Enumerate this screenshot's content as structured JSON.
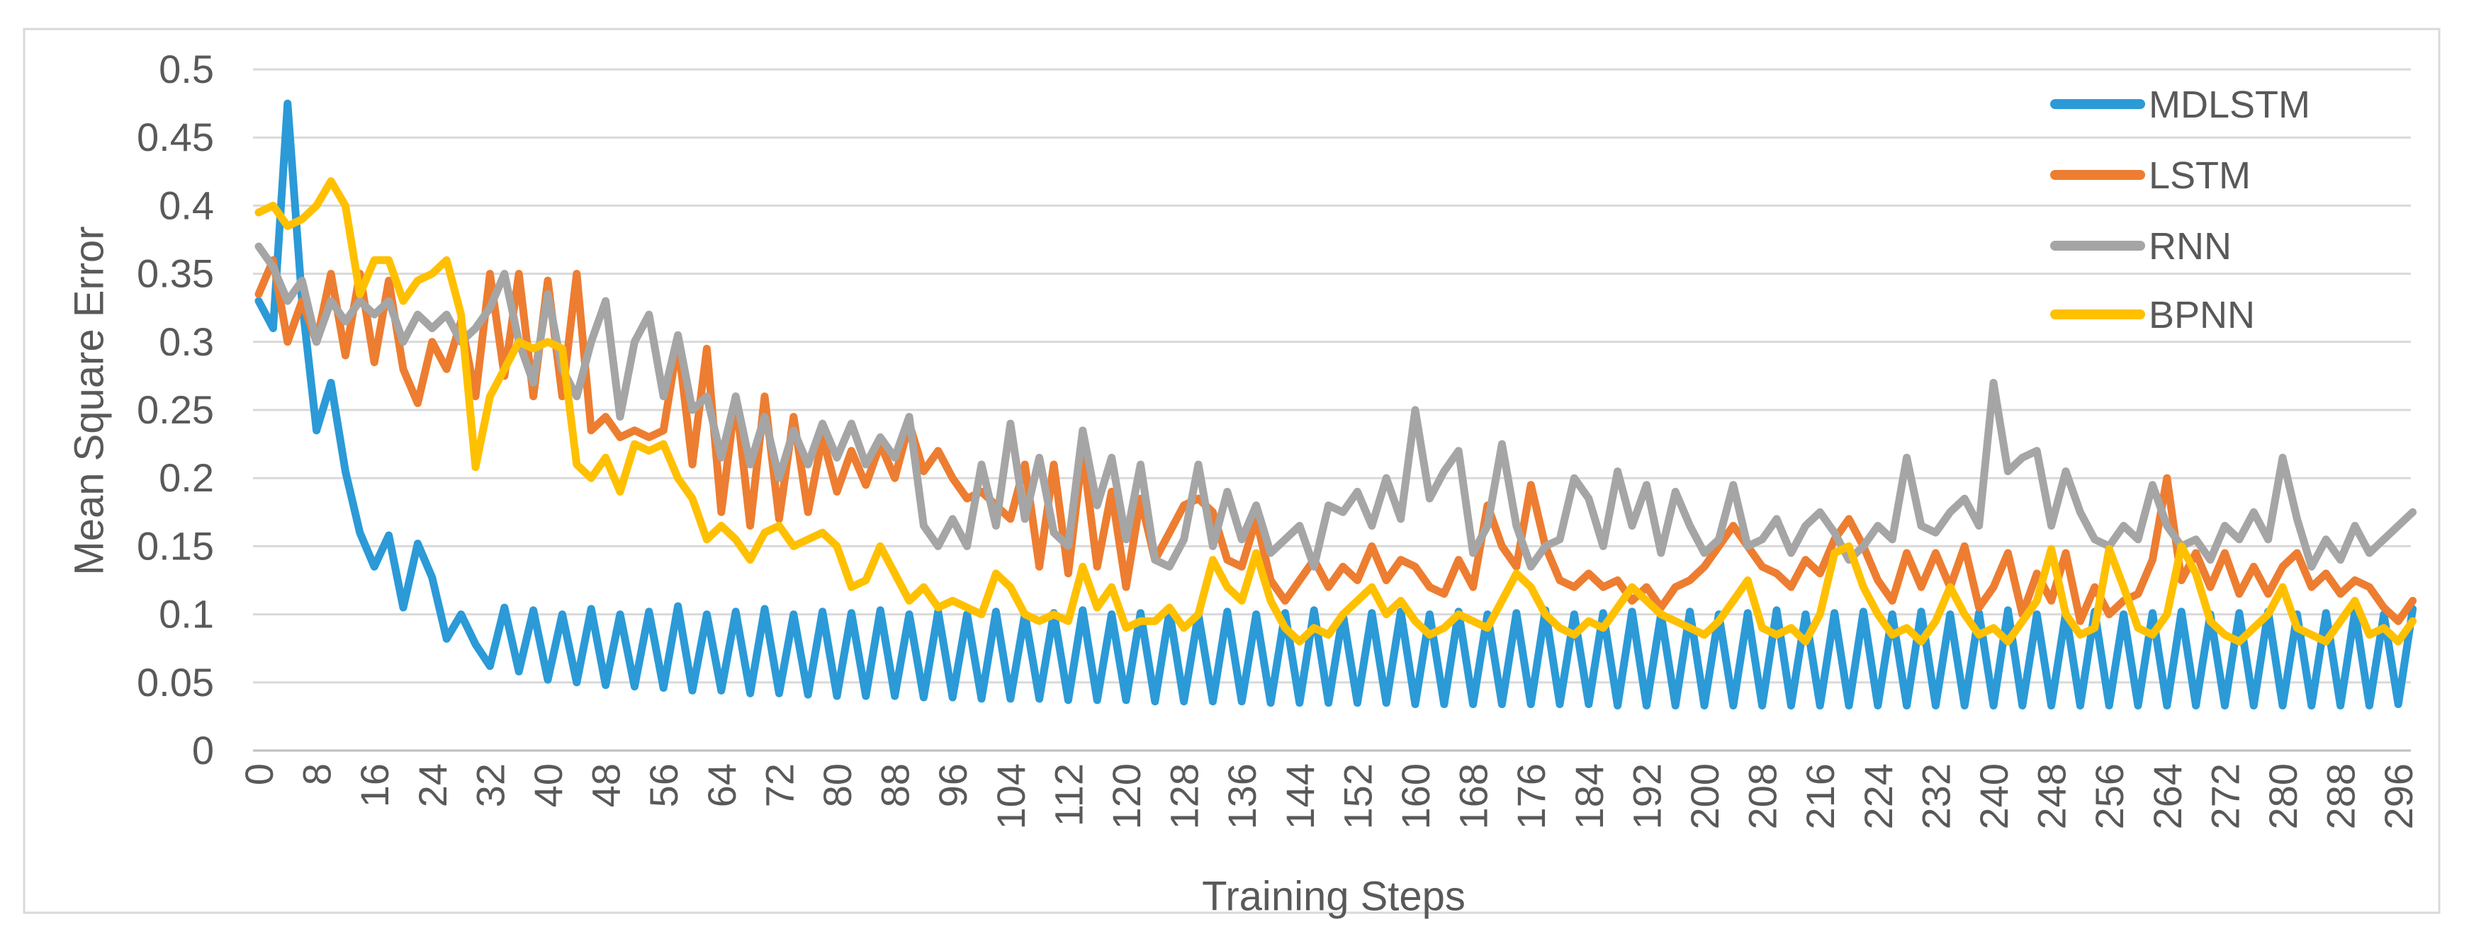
{
  "figure": {
    "background": "#FFFFFF"
  },
  "chart_data": {
    "type": "line",
    "title": "",
    "xlabel": "Training Steps",
    "ylabel": "Mean Square Error",
    "grid": true,
    "legend_position": "top-right",
    "ylim": [
      0,
      0.5
    ],
    "xlim": [
      0,
      298
    ],
    "x_start": 0,
    "x_step": 2,
    "x_tick_interval": 8,
    "x_tick_labels": [
      "0",
      "8",
      "16",
      "24",
      "32",
      "40",
      "48",
      "56",
      "64",
      "72",
      "80",
      "88",
      "96",
      "104",
      "112",
      "120",
      "128",
      "136",
      "144",
      "152",
      "160",
      "168",
      "176",
      "184",
      "192",
      "200",
      "208",
      "216",
      "224",
      "232",
      "240",
      "248",
      "256",
      "264",
      "272",
      "280",
      "288",
      "296"
    ],
    "y_ticks": [
      0,
      0.05,
      0.1,
      0.15,
      0.2,
      0.25,
      0.3,
      0.35,
      0.4,
      0.45,
      0.5
    ],
    "y_tick_labels": [
      "0",
      "0.05",
      "0.1",
      "0.15",
      "0.2",
      "0.25",
      "0.3",
      "0.35",
      "0.4",
      "0.45",
      "0.5"
    ],
    "colors": {
      "gridline": "#D9D9D9",
      "axis": "#BFBFBF",
      "border": "#D9D9D9",
      "text": "#595959"
    },
    "series": [
      {
        "name": "MDLSTM",
        "color": "#2B9AD7",
        "values": [
          0.33,
          0.31,
          0.475,
          0.33,
          0.235,
          0.27,
          0.205,
          0.16,
          0.135,
          0.158,
          0.105,
          0.152,
          0.127,
          0.082,
          0.1,
          0.078,
          0.062,
          0.105,
          0.058,
          0.103,
          0.052,
          0.1,
          0.05,
          0.104,
          0.048,
          0.1,
          0.047,
          0.102,
          0.046,
          0.106,
          0.044,
          0.1,
          0.044,
          0.102,
          0.042,
          0.104,
          0.042,
          0.1,
          0.041,
          0.102,
          0.04,
          0.101,
          0.04,
          0.103,
          0.04,
          0.1,
          0.039,
          0.102,
          0.039,
          0.1,
          0.038,
          0.102,
          0.038,
          0.1,
          0.038,
          0.101,
          0.037,
          0.103,
          0.037,
          0.1,
          0.037,
          0.101,
          0.036,
          0.102,
          0.036,
          0.1,
          0.036,
          0.102,
          0.036,
          0.1,
          0.035,
          0.101,
          0.035,
          0.103,
          0.035,
          0.1,
          0.035,
          0.101,
          0.035,
          0.102,
          0.034,
          0.1,
          0.034,
          0.102,
          0.034,
          0.1,
          0.034,
          0.101,
          0.034,
          0.103,
          0.034,
          0.1,
          0.034,
          0.101,
          0.033,
          0.102,
          0.033,
          0.1,
          0.033,
          0.102,
          0.033,
          0.1,
          0.033,
          0.101,
          0.033,
          0.103,
          0.033,
          0.1,
          0.033,
          0.101,
          0.033,
          0.102,
          0.033,
          0.1,
          0.033,
          0.102,
          0.033,
          0.1,
          0.033,
          0.101,
          0.033,
          0.103,
          0.033,
          0.1,
          0.033,
          0.101,
          0.033,
          0.102,
          0.033,
          0.1,
          0.033,
          0.101,
          0.033,
          0.102,
          0.033,
          0.1,
          0.033,
          0.101,
          0.033,
          0.102,
          0.033,
          0.1,
          0.033,
          0.101,
          0.033,
          0.102,
          0.033,
          0.1,
          0.034,
          0.104
        ]
      },
      {
        "name": "LSTM",
        "color": "#ED7D31",
        "values": [
          0.335,
          0.36,
          0.3,
          0.33,
          0.3,
          0.35,
          0.29,
          0.35,
          0.285,
          0.345,
          0.28,
          0.255,
          0.3,
          0.28,
          0.315,
          0.26,
          0.35,
          0.275,
          0.35,
          0.26,
          0.345,
          0.26,
          0.35,
          0.235,
          0.245,
          0.23,
          0.235,
          0.23,
          0.235,
          0.3,
          0.21,
          0.295,
          0.175,
          0.26,
          0.165,
          0.26,
          0.17,
          0.245,
          0.175,
          0.23,
          0.19,
          0.22,
          0.195,
          0.225,
          0.2,
          0.24,
          0.205,
          0.22,
          0.2,
          0.185,
          0.19,
          0.18,
          0.17,
          0.21,
          0.135,
          0.21,
          0.13,
          0.22,
          0.135,
          0.19,
          0.12,
          0.185,
          0.14,
          0.16,
          0.18,
          0.185,
          0.175,
          0.14,
          0.135,
          0.17,
          0.125,
          0.11,
          0.125,
          0.14,
          0.12,
          0.135,
          0.125,
          0.15,
          0.125,
          0.14,
          0.135,
          0.12,
          0.115,
          0.14,
          0.12,
          0.18,
          0.15,
          0.135,
          0.195,
          0.15,
          0.125,
          0.12,
          0.13,
          0.12,
          0.125,
          0.11,
          0.12,
          0.105,
          0.12,
          0.125,
          0.135,
          0.15,
          0.165,
          0.15,
          0.135,
          0.13,
          0.12,
          0.14,
          0.13,
          0.155,
          0.17,
          0.15,
          0.125,
          0.11,
          0.145,
          0.12,
          0.145,
          0.12,
          0.15,
          0.105,
          0.12,
          0.145,
          0.1,
          0.13,
          0.11,
          0.145,
          0.095,
          0.12,
          0.1,
          0.11,
          0.115,
          0.14,
          0.2,
          0.125,
          0.145,
          0.12,
          0.145,
          0.115,
          0.135,
          0.115,
          0.135,
          0.145,
          0.12,
          0.13,
          0.115,
          0.125,
          0.12,
          0.105,
          0.095,
          0.11
        ]
      },
      {
        "name": "RNN",
        "color": "#A5A5A5",
        "values": [
          0.37,
          0.355,
          0.33,
          0.345,
          0.3,
          0.33,
          0.315,
          0.33,
          0.32,
          0.33,
          0.3,
          0.32,
          0.31,
          0.32,
          0.3,
          0.31,
          0.325,
          0.35,
          0.3,
          0.27,
          0.335,
          0.28,
          0.26,
          0.3,
          0.33,
          0.245,
          0.3,
          0.32,
          0.26,
          0.305,
          0.25,
          0.26,
          0.215,
          0.26,
          0.21,
          0.245,
          0.2,
          0.235,
          0.21,
          0.24,
          0.215,
          0.24,
          0.21,
          0.23,
          0.215,
          0.245,
          0.165,
          0.15,
          0.17,
          0.15,
          0.21,
          0.165,
          0.24,
          0.17,
          0.215,
          0.16,
          0.15,
          0.235,
          0.18,
          0.215,
          0.155,
          0.21,
          0.14,
          0.135,
          0.155,
          0.21,
          0.15,
          0.19,
          0.155,
          0.18,
          0.145,
          0.155,
          0.165,
          0.135,
          0.18,
          0.175,
          0.19,
          0.165,
          0.2,
          0.17,
          0.25,
          0.185,
          0.205,
          0.22,
          0.145,
          0.165,
          0.225,
          0.165,
          0.135,
          0.15,
          0.155,
          0.2,
          0.185,
          0.15,
          0.205,
          0.165,
          0.195,
          0.145,
          0.19,
          0.165,
          0.145,
          0.155,
          0.195,
          0.15,
          0.155,
          0.17,
          0.145,
          0.165,
          0.175,
          0.16,
          0.14,
          0.15,
          0.165,
          0.155,
          0.215,
          0.165,
          0.16,
          0.175,
          0.185,
          0.165,
          0.27,
          0.205,
          0.215,
          0.22,
          0.165,
          0.205,
          0.175,
          0.155,
          0.15,
          0.165,
          0.155,
          0.195,
          0.165,
          0.15,
          0.155,
          0.14,
          0.165,
          0.155,
          0.175,
          0.155,
          0.215,
          0.17,
          0.135,
          0.155,
          0.14,
          0.165,
          0.145,
          0.155,
          0.165,
          0.175
        ]
      },
      {
        "name": "BPNN",
        "color": "#FFC000",
        "values": [
          0.395,
          0.4,
          0.385,
          0.39,
          0.4,
          0.418,
          0.4,
          0.335,
          0.36,
          0.36,
          0.33,
          0.345,
          0.35,
          0.36,
          0.32,
          0.208,
          0.26,
          0.28,
          0.3,
          0.295,
          0.3,
          0.295,
          0.21,
          0.2,
          0.215,
          0.19,
          0.225,
          0.22,
          0.225,
          0.2,
          0.185,
          0.155,
          0.165,
          0.155,
          0.14,
          0.16,
          0.165,
          0.15,
          0.155,
          0.16,
          0.15,
          0.12,
          0.125,
          0.15,
          0.13,
          0.11,
          0.12,
          0.105,
          0.11,
          0.105,
          0.1,
          0.13,
          0.12,
          0.1,
          0.095,
          0.1,
          0.095,
          0.135,
          0.105,
          0.12,
          0.09,
          0.095,
          0.095,
          0.105,
          0.09,
          0.1,
          0.14,
          0.12,
          0.11,
          0.145,
          0.11,
          0.09,
          0.08,
          0.09,
          0.085,
          0.1,
          0.11,
          0.12,
          0.1,
          0.11,
          0.095,
          0.085,
          0.09,
          0.1,
          0.095,
          0.09,
          0.11,
          0.13,
          0.12,
          0.1,
          0.09,
          0.085,
          0.095,
          0.09,
          0.105,
          0.12,
          0.11,
          0.1,
          0.095,
          0.09,
          0.085,
          0.095,
          0.11,
          0.125,
          0.09,
          0.085,
          0.09,
          0.08,
          0.1,
          0.145,
          0.15,
          0.12,
          0.1,
          0.085,
          0.09,
          0.08,
          0.095,
          0.12,
          0.1,
          0.085,
          0.09,
          0.08,
          0.095,
          0.11,
          0.148,
          0.1,
          0.085,
          0.09,
          0.148,
          0.12,
          0.09,
          0.085,
          0.1,
          0.15,
          0.13,
          0.095,
          0.085,
          0.08,
          0.09,
          0.1,
          0.12,
          0.09,
          0.085,
          0.08,
          0.095,
          0.11,
          0.085,
          0.09,
          0.08,
          0.095
        ]
      }
    ]
  }
}
